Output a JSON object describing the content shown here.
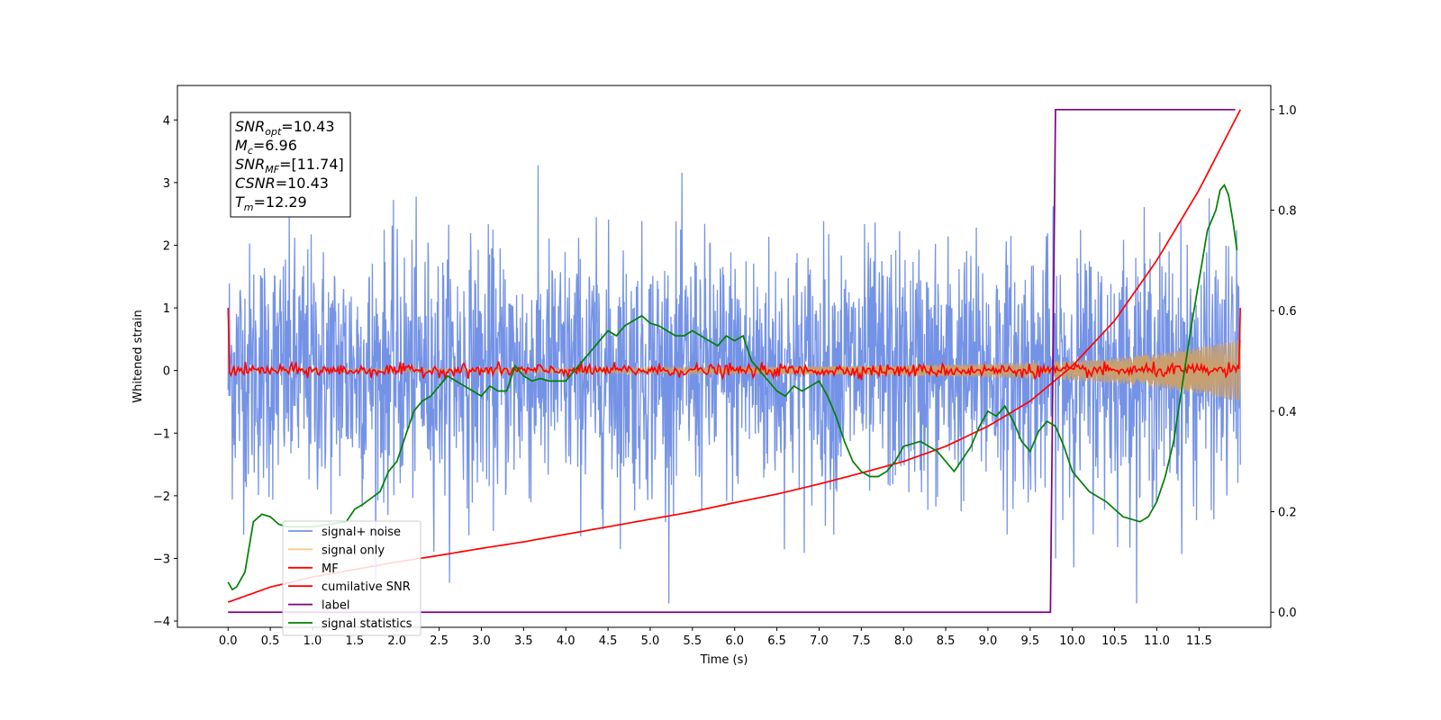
{
  "chart_data": {
    "type": "line",
    "xlabel": "Time (s)",
    "ylabel": "Whitened strain",
    "xlim": [
      -0.6,
      12.35
    ],
    "ylim_left": [
      -4.1,
      4.55
    ],
    "ylim_right": [
      -0.03,
      1.048
    ],
    "x_ticks": [
      0.0,
      0.5,
      1.0,
      1.5,
      2.0,
      2.5,
      3.0,
      3.5,
      4.0,
      4.5,
      5.0,
      5.5,
      6.0,
      6.5,
      7.0,
      7.5,
      8.0,
      8.5,
      9.0,
      9.5,
      10.0,
      10.5,
      11.0,
      11.5
    ],
    "x_tick_labels": [
      "0.0",
      "0.5",
      "1.0",
      "1.5",
      "2.0",
      "2.5",
      "3.0",
      "3.5",
      "4.0",
      "4.5",
      "5.0",
      "5.5",
      "6.0",
      "6.5",
      "7.0",
      "7.5",
      "8.0",
      "8.5",
      "9.0",
      "9.5",
      "10.0",
      "10.5",
      "11.0",
      "11.5"
    ],
    "y_left_ticks": [
      4,
      3,
      2,
      1,
      0,
      -1,
      -2,
      -3,
      -4
    ],
    "y_left_tick_labels": [
      "4",
      "3",
      "2",
      "1",
      "0",
      "−1",
      "−2",
      "−3",
      "−4"
    ],
    "y_right_ticks": [
      1.0,
      0.8,
      0.6,
      0.4,
      0.2,
      0.0
    ],
    "y_right_tick_labels": [
      "1.0",
      "0.8",
      "0.6",
      "0.4",
      "0.2",
      "0.0"
    ],
    "grid": false,
    "legend_position": "lower-left",
    "stats_box": {
      "lines": [
        {
          "sym": "SNR",
          "sub": "opt",
          "val": "=10.43"
        },
        {
          "sym": "M",
          "sub": "c",
          "val": "=6.96"
        },
        {
          "sym": "SNR",
          "sub": "MF",
          "val": "=[11.74]"
        },
        {
          "sym": "CSNR",
          "sub": "",
          "val": "=10.43"
        },
        {
          "sym": "T",
          "sub": "m",
          "val": "=12.29"
        }
      ]
    },
    "legend": [
      {
        "name": "signal+ noise",
        "color": "#7593e6"
      },
      {
        "name": "signal only",
        "color": "#f7c97a"
      },
      {
        "name": "MF",
        "color": "#ff0000"
      },
      {
        "name": "cumilative SNR",
        "color": "#ff0000"
      },
      {
        "name": "label",
        "color": "#800080"
      },
      {
        "name": "signal statistics",
        "color": "#008000"
      }
    ],
    "series": [
      {
        "name": "signal+ noise",
        "axis": "left",
        "color": "#7593e6",
        "x_range": [
          0.0,
          11.99
        ],
        "noise_sigma": 1.0,
        "observed_max": 4.15,
        "observed_min": -3.72
      },
      {
        "name": "signal only",
        "axis": "left",
        "color": "#c8a070",
        "envelope": {
          "x": [
            0.0,
            2.0,
            4.0,
            6.0,
            8.0,
            9.0,
            10.0,
            10.5,
            11.0,
            11.5,
            11.99
          ],
          "amp": [
            0.02,
            0.03,
            0.04,
            0.05,
            0.08,
            0.11,
            0.16,
            0.2,
            0.27,
            0.37,
            0.5
          ]
        }
      },
      {
        "name": "MF",
        "axis": "left",
        "color": "#ff0000",
        "x_range": [
          0.0,
          11.99
        ],
        "start_spike": 1.0,
        "end_spike": 1.0,
        "noise_sigma": 0.05
      },
      {
        "name": "cumilative SNR",
        "axis": "right",
        "color": "#ff0000",
        "x": [
          0.0,
          0.5,
          1.0,
          1.5,
          2.0,
          2.5,
          3.0,
          3.5,
          4.0,
          4.5,
          5.0,
          5.5,
          6.0,
          6.5,
          7.0,
          7.5,
          8.0,
          8.5,
          9.0,
          9.5,
          10.0,
          10.5,
          11.0,
          11.5,
          11.99
        ],
        "y": [
          0.02,
          0.05,
          0.07,
          0.085,
          0.1,
          0.113,
          0.127,
          0.14,
          0.155,
          0.17,
          0.185,
          0.2,
          0.218,
          0.235,
          0.255,
          0.277,
          0.3,
          0.33,
          0.37,
          0.42,
          0.49,
          0.58,
          0.7,
          0.84,
          1.0
        ]
      },
      {
        "name": "label",
        "axis": "right",
        "color": "#800080",
        "x": [
          0.0,
          9.74,
          9.8,
          11.93
        ],
        "y": [
          0.0,
          0.0,
          1.0,
          1.0
        ]
      },
      {
        "name": "signal statistics",
        "axis": "right",
        "color": "#008000",
        "x": [
          0.0,
          0.05,
          0.1,
          0.2,
          0.3,
          0.4,
          0.5,
          0.6,
          0.7,
          0.8,
          1.0,
          1.2,
          1.4,
          1.5,
          1.6,
          1.8,
          1.9,
          2.0,
          2.1,
          2.2,
          2.3,
          2.4,
          2.5,
          2.6,
          2.7,
          2.8,
          2.9,
          3.0,
          3.1,
          3.2,
          3.3,
          3.4,
          3.5,
          3.6,
          3.7,
          3.8,
          4.0,
          4.1,
          4.2,
          4.3,
          4.4,
          4.5,
          4.6,
          4.7,
          4.8,
          4.9,
          5.0,
          5.1,
          5.2,
          5.3,
          5.4,
          5.5,
          5.6,
          5.7,
          5.8,
          5.9,
          6.0,
          6.1,
          6.2,
          6.3,
          6.4,
          6.5,
          6.6,
          6.7,
          6.8,
          6.9,
          7.0,
          7.1,
          7.2,
          7.3,
          7.4,
          7.5,
          7.6,
          7.7,
          7.8,
          7.9,
          8.0,
          8.2,
          8.4,
          8.6,
          8.8,
          8.9,
          9.0,
          9.1,
          9.2,
          9.3,
          9.4,
          9.5,
          9.6,
          9.7,
          9.8,
          9.9,
          10.0,
          10.2,
          10.4,
          10.6,
          10.8,
          10.9,
          11.0,
          11.1,
          11.2,
          11.3,
          11.4,
          11.5,
          11.6,
          11.7,
          11.75,
          11.8,
          11.85,
          11.9,
          11.95
        ],
        "y": [
          0.06,
          0.045,
          0.05,
          0.08,
          0.18,
          0.195,
          0.19,
          0.175,
          0.17,
          0.17,
          0.17,
          0.175,
          0.18,
          0.205,
          0.215,
          0.24,
          0.28,
          0.3,
          0.35,
          0.4,
          0.42,
          0.43,
          0.45,
          0.47,
          0.46,
          0.45,
          0.44,
          0.43,
          0.45,
          0.44,
          0.44,
          0.49,
          0.47,
          0.46,
          0.465,
          0.46,
          0.46,
          0.48,
          0.5,
          0.52,
          0.54,
          0.56,
          0.55,
          0.57,
          0.58,
          0.59,
          0.575,
          0.57,
          0.56,
          0.55,
          0.55,
          0.56,
          0.55,
          0.54,
          0.53,
          0.55,
          0.54,
          0.55,
          0.5,
          0.48,
          0.46,
          0.44,
          0.43,
          0.45,
          0.44,
          0.45,
          0.46,
          0.43,
          0.39,
          0.34,
          0.3,
          0.28,
          0.27,
          0.27,
          0.28,
          0.3,
          0.33,
          0.34,
          0.32,
          0.28,
          0.33,
          0.37,
          0.4,
          0.39,
          0.41,
          0.38,
          0.34,
          0.32,
          0.36,
          0.38,
          0.37,
          0.33,
          0.28,
          0.24,
          0.22,
          0.19,
          0.18,
          0.19,
          0.22,
          0.27,
          0.34,
          0.45,
          0.56,
          0.66,
          0.76,
          0.8,
          0.84,
          0.85,
          0.83,
          0.78,
          0.72
        ]
      }
    ]
  }
}
